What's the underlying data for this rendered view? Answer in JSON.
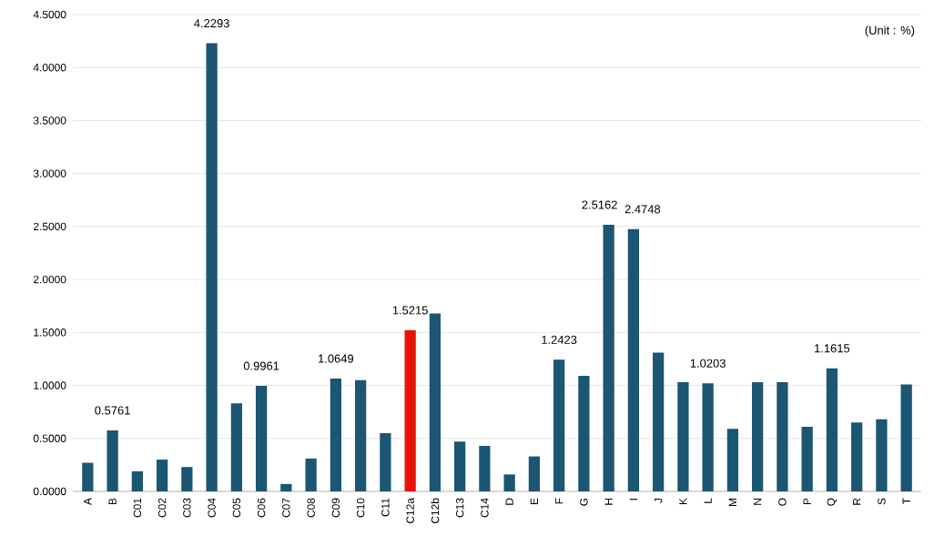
{
  "chart_data": {
    "type": "bar",
    "categories": [
      "A",
      "B",
      "C01",
      "C02",
      "C03",
      "C04",
      "C05",
      "C06",
      "C07",
      "C08",
      "C09",
      "C10",
      "C11",
      "C12a",
      "C12b",
      "C13",
      "C14",
      "D",
      "E",
      "F",
      "G",
      "H",
      "I",
      "J",
      "K",
      "L",
      "M",
      "N",
      "O",
      "P",
      "Q",
      "R",
      "S",
      "T"
    ],
    "values": [
      0.27,
      0.5761,
      0.19,
      0.3,
      0.23,
      4.2293,
      0.83,
      0.9961,
      0.07,
      0.31,
      1.0649,
      1.05,
      0.55,
      1.5215,
      1.68,
      0.47,
      0.43,
      0.16,
      0.33,
      1.2423,
      1.09,
      2.5162,
      2.4748,
      1.31,
      1.03,
      1.0203,
      0.59,
      1.03,
      1.03,
      0.61,
      1.1615,
      0.65,
      0.68,
      1.01
    ],
    "value_labels": [
      null,
      "0.5761",
      null,
      null,
      null,
      "4.2293",
      null,
      "0.9961",
      null,
      null,
      "1.0649",
      null,
      null,
      "1.5215",
      null,
      null,
      null,
      null,
      null,
      "1.2423",
      null,
      "2.5162",
      "2.4748",
      null,
      null,
      "1.0203",
      null,
      null,
      null,
      null,
      "1.1615",
      null,
      null,
      null
    ],
    "colors": [
      "#1b5673",
      "#1b5673",
      "#1b5673",
      "#1b5673",
      "#1b5673",
      "#1b5673",
      "#1b5673",
      "#1b5673",
      "#1b5673",
      "#1b5673",
      "#1b5673",
      "#1b5673",
      "#1b5673",
      "#e8120c",
      "#1b5673",
      "#1b5673",
      "#1b5673",
      "#1b5673",
      "#1b5673",
      "#1b5673",
      "#1b5673",
      "#1b5673",
      "#1b5673",
      "#1b5673",
      "#1b5673",
      "#1b5673",
      "#1b5673",
      "#1b5673",
      "#1b5673",
      "#1b5673",
      "#1b5673",
      "#1b5673",
      "#1b5673",
      "#1b5673"
    ],
    "ylim": [
      0,
      4.5
    ],
    "yticks": [
      {
        "value": 0,
        "label": "0.0000"
      },
      {
        "value": 0.5,
        "label": "0.5000"
      },
      {
        "value": 1,
        "label": "1.0000"
      },
      {
        "value": 1.5,
        "label": "1.5000"
      },
      {
        "value": 2,
        "label": "2.0000"
      },
      {
        "value": 2.5,
        "label": "2.5000"
      },
      {
        "value": 3,
        "label": "3.0000"
      },
      {
        "value": 3.5,
        "label": "3.5000"
      },
      {
        "value": 4,
        "label": "4.0000"
      },
      {
        "value": 4.5,
        "label": "4.5000"
      }
    ],
    "grid": "y",
    "annotations": [
      "(Unit : %)"
    ]
  }
}
